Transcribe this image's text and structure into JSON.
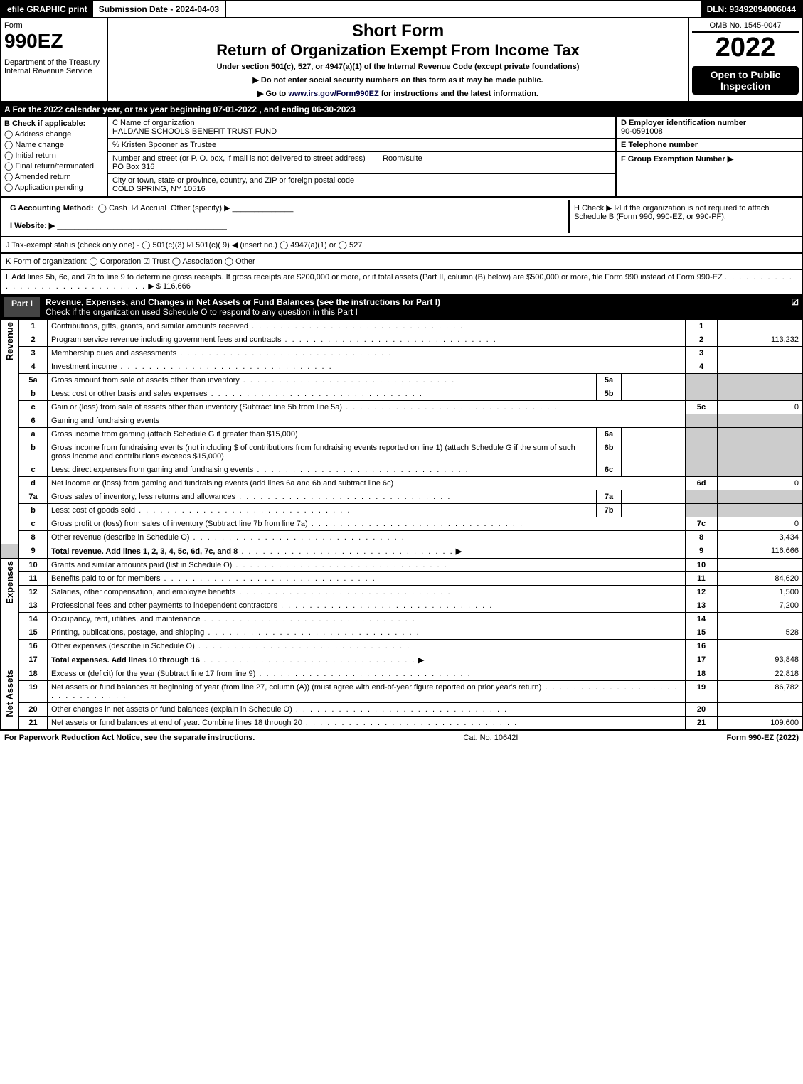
{
  "top": {
    "efile": "efile GRAPHIC print",
    "subdate_lbl": "Submission Date - 2024-04-03",
    "dln": "DLN: 93492094006044"
  },
  "header": {
    "form_word": "Form",
    "form_num": "990EZ",
    "dept": "Department of the Treasury\nInternal Revenue Service",
    "short": "Short Form",
    "ret": "Return of Organization Exempt From Income Tax",
    "sub": "Under section 501(c), 527, or 4947(a)(1) of the Internal Revenue Code (except private foundations)",
    "ptr1": "▶ Do not enter social security numbers on this form as it may be made public.",
    "ptr2_pre": "▶ Go to ",
    "ptr2_link": "www.irs.gov/Form990EZ",
    "ptr2_post": " for instructions and the latest information.",
    "omb": "OMB No. 1545-0047",
    "year": "2022",
    "open": "Open to Public Inspection"
  },
  "lineA": "A  For the 2022 calendar year, or tax year beginning 07-01-2022 , and ending 06-30-2023",
  "B": {
    "hdr": "B  Check if applicable:",
    "o1": "Address change",
    "o2": "Name change",
    "o3": "Initial return",
    "o4": "Final return/terminated",
    "o5": "Amended return",
    "o6": "Application pending"
  },
  "C": {
    "name_lbl": "C Name of organization",
    "name": "HALDANE SCHOOLS BENEFIT TRUST FUND",
    "care": "% Kristen Spooner as Trustee",
    "addr_lbl": "Number and street (or P. O. box, if mail is not delivered to street address)",
    "room_lbl": "Room/suite",
    "addr": "PO Box 316",
    "city_lbl": "City or town, state or province, country, and ZIP or foreign postal code",
    "city": "COLD SPRING, NY  10516"
  },
  "D": {
    "lbl": "D Employer identification number",
    "val": "90-0591008"
  },
  "E": {
    "lbl": "E Telephone number",
    "val": ""
  },
  "F": {
    "lbl": "F Group Exemption Number  ▶",
    "val": ""
  },
  "G": {
    "lbl": "G Accounting Method:",
    "cash": "Cash",
    "accrual": "Accrual",
    "other": "Other (specify) ▶"
  },
  "H": {
    "txt": "H  Check ▶ ☑ if the organization is not required to attach Schedule B (Form 990, 990-EZ, or 990-PF)."
  },
  "I": {
    "lbl": "I Website: ▶",
    "val": ""
  },
  "J": {
    "txt": "J Tax-exempt status (check only one) - ◯ 501(c)(3) ☑ 501(c)( 9) ◀ (insert no.) ◯ 4947(a)(1) or ◯ 527"
  },
  "K": {
    "txt": "K Form of organization:  ◯ Corporation  ☑ Trust  ◯ Association  ◯ Other"
  },
  "L": {
    "txt": "L Add lines 5b, 6c, and 7b to line 9 to determine gross receipts. If gross receipts are $200,000 or more, or if total assets (Part II, column (B) below) are $500,000 or more, file Form 990 instead of Form 990-EZ",
    "amt": "▶ $ 116,666"
  },
  "partI": {
    "num": "Part I",
    "title": "Revenue, Expenses, and Changes in Net Assets or Fund Balances (see the instructions for Part I)",
    "check": "Check if the organization used Schedule O to respond to any question in this Part I",
    "cb": "☑"
  },
  "sections": {
    "revenue": "Revenue",
    "expenses": "Expenses",
    "netassets": "Net Assets"
  },
  "rows": {
    "r1": {
      "n": "1",
      "d": "Contributions, gifts, grants, and similar amounts received",
      "box": "1",
      "amt": ""
    },
    "r2": {
      "n": "2",
      "d": "Program service revenue including government fees and contracts",
      "box": "2",
      "amt": "113,232"
    },
    "r3": {
      "n": "3",
      "d": "Membership dues and assessments",
      "box": "3",
      "amt": ""
    },
    "r4": {
      "n": "4",
      "d": "Investment income",
      "box": "4",
      "amt": ""
    },
    "r5a": {
      "n": "5a",
      "d": "Gross amount from sale of assets other than inventory",
      "sl": "5a",
      "sv": ""
    },
    "r5b": {
      "n": "b",
      "d": "Less: cost or other basis and sales expenses",
      "sl": "5b",
      "sv": ""
    },
    "r5c": {
      "n": "c",
      "d": "Gain or (loss) from sale of assets other than inventory (Subtract line 5b from line 5a)",
      "box": "5c",
      "amt": "0"
    },
    "r6": {
      "n": "6",
      "d": "Gaming and fundraising events"
    },
    "r6a": {
      "n": "a",
      "d": "Gross income from gaming (attach Schedule G if greater than $15,000)",
      "sl": "6a",
      "sv": ""
    },
    "r6b": {
      "n": "b",
      "d": "Gross income from fundraising events (not including $                  of contributions from fundraising events reported on line 1) (attach Schedule G if the sum of such gross income and contributions exceeds $15,000)",
      "sl": "6b",
      "sv": ""
    },
    "r6c": {
      "n": "c",
      "d": "Less: direct expenses from gaming and fundraising events",
      "sl": "6c",
      "sv": ""
    },
    "r6d": {
      "n": "d",
      "d": "Net income or (loss) from gaming and fundraising events (add lines 6a and 6b and subtract line 6c)",
      "box": "6d",
      "amt": "0"
    },
    "r7a": {
      "n": "7a",
      "d": "Gross sales of inventory, less returns and allowances",
      "sl": "7a",
      "sv": ""
    },
    "r7b": {
      "n": "b",
      "d": "Less: cost of goods sold",
      "sl": "7b",
      "sv": ""
    },
    "r7c": {
      "n": "c",
      "d": "Gross profit or (loss) from sales of inventory (Subtract line 7b from line 7a)",
      "box": "7c",
      "amt": "0"
    },
    "r8": {
      "n": "8",
      "d": "Other revenue (describe in Schedule O)",
      "box": "8",
      "amt": "3,434"
    },
    "r9": {
      "n": "9",
      "d": "Total revenue. Add lines 1, 2, 3, 4, 5c, 6d, 7c, and 8",
      "box": "9",
      "amt": "116,666",
      "arrow": "▶"
    },
    "r10": {
      "n": "10",
      "d": "Grants and similar amounts paid (list in Schedule O)",
      "box": "10",
      "amt": ""
    },
    "r11": {
      "n": "11",
      "d": "Benefits paid to or for members",
      "box": "11",
      "amt": "84,620"
    },
    "r12": {
      "n": "12",
      "d": "Salaries, other compensation, and employee benefits",
      "box": "12",
      "amt": "1,500"
    },
    "r13": {
      "n": "13",
      "d": "Professional fees and other payments to independent contractors",
      "box": "13",
      "amt": "7,200"
    },
    "r14": {
      "n": "14",
      "d": "Occupancy, rent, utilities, and maintenance",
      "box": "14",
      "amt": ""
    },
    "r15": {
      "n": "15",
      "d": "Printing, publications, postage, and shipping",
      "box": "15",
      "amt": "528"
    },
    "r16": {
      "n": "16",
      "d": "Other expenses (describe in Schedule O)",
      "box": "16",
      "amt": ""
    },
    "r17": {
      "n": "17",
      "d": "Total expenses. Add lines 10 through 16",
      "box": "17",
      "amt": "93,848",
      "arrow": "▶"
    },
    "r18": {
      "n": "18",
      "d": "Excess or (deficit) for the year (Subtract line 17 from line 9)",
      "box": "18",
      "amt": "22,818"
    },
    "r19": {
      "n": "19",
      "d": "Net assets or fund balances at beginning of year (from line 27, column (A)) (must agree with end-of-year figure reported on prior year's return)",
      "box": "19",
      "amt": "86,782"
    },
    "r20": {
      "n": "20",
      "d": "Other changes in net assets or fund balances (explain in Schedule O)",
      "box": "20",
      "amt": ""
    },
    "r21": {
      "n": "21",
      "d": "Net assets or fund balances at end of year. Combine lines 18 through 20",
      "box": "21",
      "amt": "109,600"
    }
  },
  "footer": {
    "left": "For Paperwork Reduction Act Notice, see the separate instructions.",
    "mid": "Cat. No. 10642I",
    "right": "Form 990-EZ (2022)"
  }
}
